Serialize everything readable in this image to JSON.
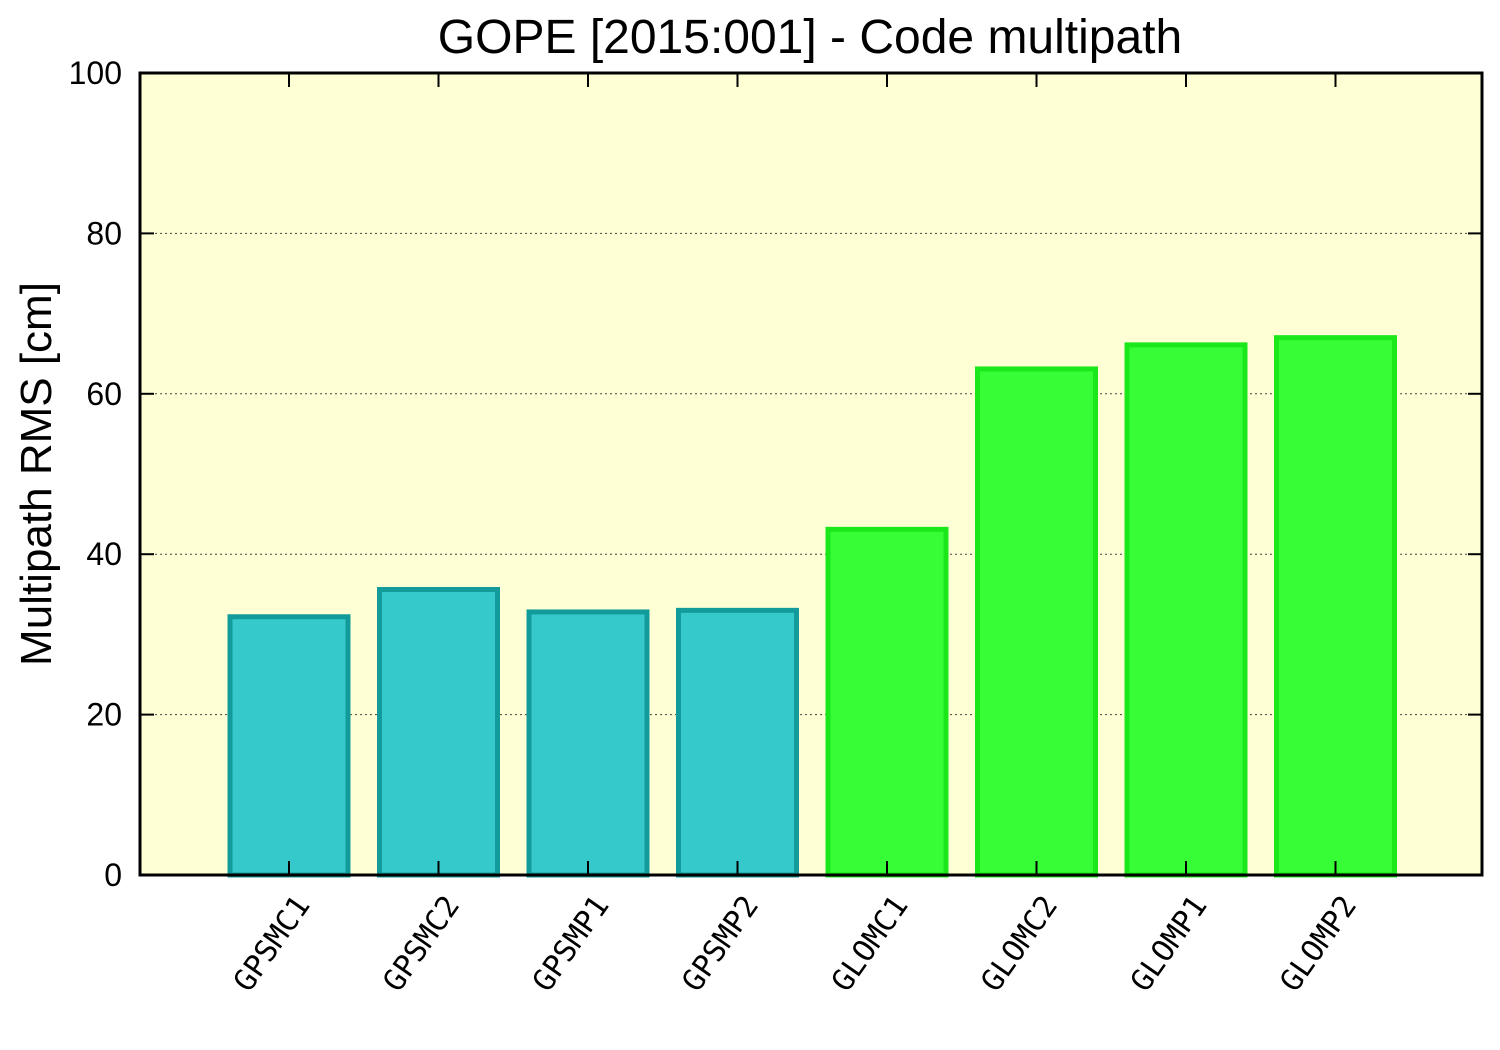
{
  "chart_data": {
    "type": "bar",
    "title": "GOPE [2015:001] - Code multipath",
    "ylabel": "Multipath RMS [cm]",
    "xlabel": "",
    "ylim": [
      0,
      100
    ],
    "yticks": [
      0,
      20,
      40,
      60,
      80,
      100
    ],
    "grid": true,
    "categories": [
      "GPSMC1",
      "GPSMC2",
      "GPSMP1",
      "GPSMP2",
      "GLOMC1",
      "GLOMC2",
      "GLOMP1",
      "GLOMP2"
    ],
    "values": [
      32.2,
      35.6,
      32.8,
      33.0,
      43.1,
      63.1,
      66.1,
      67.0
    ],
    "colors": {
      "plot_background": "#ffffd6",
      "gps_fill": "#36c9cb",
      "gps_edge": "#129b9a",
      "glo_fill": "#36fd36",
      "glo_edge": "#1ae81a"
    },
    "bar_groups": [
      "gps",
      "gps",
      "gps",
      "gps",
      "glo",
      "glo",
      "glo",
      "glo"
    ]
  }
}
